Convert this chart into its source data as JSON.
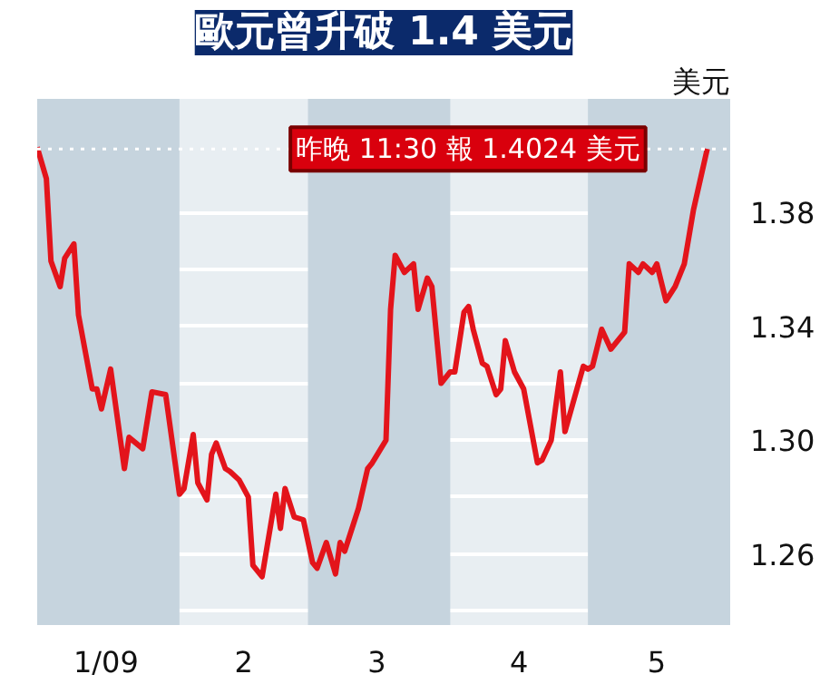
{
  "chart_data": {
    "type": "line",
    "title": "歐元曾升破 1.4 美元",
    "ylabel": "美元",
    "x": [
      "2009-01-01",
      "2009-01-03",
      "2009-01-04",
      "2009-01-06",
      "2009-01-07",
      "2009-01-09",
      "2009-01-10",
      "2009-01-13",
      "2009-01-14",
      "2009-01-15",
      "2009-01-17",
      "2009-01-20",
      "2009-01-21",
      "2009-01-24",
      "2009-01-26",
      "2009-01-29",
      "2009-02-01",
      "2009-02-02",
      "2009-02-04",
      "2009-02-05",
      "2009-02-07",
      "2009-02-08",
      "2009-02-09",
      "2009-02-11",
      "2009-02-12",
      "2009-02-14",
      "2009-02-16",
      "2009-02-17",
      "2009-02-19",
      "2009-02-22",
      "2009-02-23",
      "2009-02-24",
      "2009-02-26",
      "2009-02-28",
      "2009-03-02",
      "2009-03-03",
      "2009-03-05",
      "2009-03-07",
      "2009-03-08",
      "2009-03-09",
      "2009-03-12",
      "2009-03-14",
      "2009-03-15",
      "2009-03-18",
      "2009-03-19",
      "2009-03-20",
      "2009-03-22",
      "2009-03-24",
      "2009-03-25",
      "2009-03-27",
      "2009-03-28",
      "2009-03-30",
      "2009-04-01",
      "2009-04-02",
      "2009-04-04",
      "2009-04-05",
      "2009-04-06",
      "2009-04-08",
      "2009-04-09",
      "2009-04-11",
      "2009-04-12",
      "2009-04-13",
      "2009-04-15",
      "2009-04-17",
      "2009-04-20",
      "2009-04-21",
      "2009-04-23",
      "2009-04-25",
      "2009-04-26",
      "2009-04-30",
      "2009-05-01",
      "2009-05-02",
      "2009-05-04",
      "2009-05-06",
      "2009-05-07",
      "2009-05-09",
      "2009-05-10",
      "2009-05-12",
      "2009-05-13",
      "2009-05-15",
      "2009-05-16",
      "2009-05-18",
      "2009-05-20",
      "2009-05-22",
      "2009-05-24",
      "2009-05-27"
    ],
    "series": [
      {
        "color": "#e3141b",
        "values": [
          1.403,
          1.392,
          1.363,
          1.354,
          1.364,
          1.369,
          1.344,
          1.318,
          1.318,
          1.311,
          1.325,
          1.29,
          1.301,
          1.297,
          1.317,
          1.316,
          1.281,
          1.283,
          1.302,
          1.285,
          1.279,
          1.295,
          1.299,
          1.29,
          1.289,
          1.286,
          1.28,
          1.256,
          1.252,
          1.281,
          1.269,
          1.283,
          1.273,
          1.272,
          1.257,
          1.255,
          1.264,
          1.253,
          1.264,
          1.261,
          1.276,
          1.29,
          1.292,
          1.3,
          1.346,
          1.365,
          1.359,
          1.362,
          1.346,
          1.357,
          1.354,
          1.32,
          1.324,
          1.324,
          1.345,
          1.347,
          1.339,
          1.327,
          1.326,
          1.316,
          1.318,
          1.335,
          1.324,
          1.318,
          1.292,
          1.293,
          1.3,
          1.324,
          1.303,
          1.326,
          1.325,
          1.326,
          1.339,
          1.332,
          1.334,
          1.338,
          1.362,
          1.359,
          1.362,
          1.359,
          1.362,
          1.349,
          1.354,
          1.362,
          1.381,
          1.4024
        ]
      }
    ],
    "xlim": [
      "2009-01-01",
      "2009-06-01"
    ],
    "xticks": [
      {
        "value": "2009-01-16",
        "label": "1/09"
      },
      {
        "value": "2009-02-15",
        "label": "2"
      },
      {
        "value": "2009-03-16",
        "label": "3"
      },
      {
        "value": "2009-04-16",
        "label": "4"
      },
      {
        "value": "2009-05-16",
        "label": "5"
      }
    ],
    "ylim": [
      1.235,
      1.42
    ],
    "yticks": [
      {
        "value": 1.24,
        "label": null
      },
      1.26,
      {
        "value": 1.28,
        "label": null
      },
      {
        "value": 1.3,
        "label": "1.30"
      },
      {
        "value": 1.32,
        "label": null
      },
      1.34,
      {
        "value": 1.36,
        "label": null
      },
      1.38
    ],
    "grid": "y",
    "bands": [
      {
        "axis": "x",
        "from": "2009-01-01",
        "to": "2009-02-01",
        "color": "#c6d4de"
      },
      {
        "axis": "x",
        "from": "2009-03-01",
        "to": "2009-04-01",
        "color": "#c6d4de"
      },
      {
        "axis": "x",
        "from": "2009-05-01",
        "to": "2009-06-01",
        "color": "#c6d4de"
      }
    ],
    "ref_lines": [
      {
        "axis": "y",
        "value": 1.4024,
        "color": "#ffffff",
        "line_style": "dotted"
      }
    ],
    "annotations": [
      {
        "text": "昨晚 11:30 報 1.4024 美元",
        "x": "2009-05-27",
        "y": 1.4024
      }
    ]
  }
}
